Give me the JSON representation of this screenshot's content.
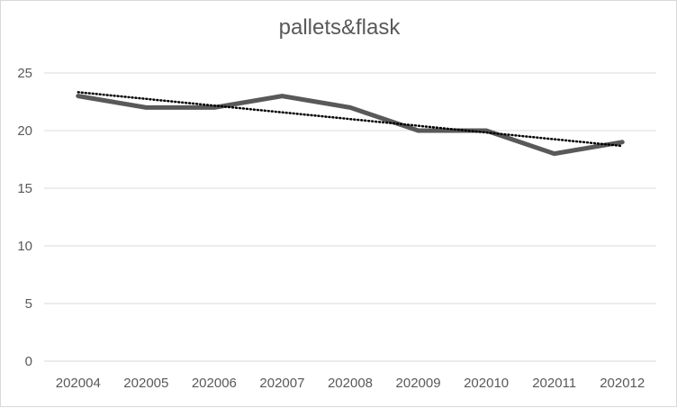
{
  "chart_data": {
    "type": "line",
    "title": "pallets&flask",
    "xlabel": "",
    "ylabel": "",
    "categories": [
      "202004",
      "202005",
      "202006",
      "202007",
      "202008",
      "202009",
      "202010",
      "202011",
      "202012"
    ],
    "series": [
      {
        "values": [
          23,
          22,
          22,
          23,
          22,
          20,
          20,
          18,
          19
        ],
        "color": "#595959",
        "style": "solid"
      }
    ],
    "trendline": {
      "type": "linear",
      "style": "dotted",
      "color": "#000000"
    },
    "ylim": [
      0,
      25
    ],
    "yticks": [
      0,
      5,
      10,
      15,
      20,
      25
    ],
    "grid": true,
    "legend": "none"
  }
}
